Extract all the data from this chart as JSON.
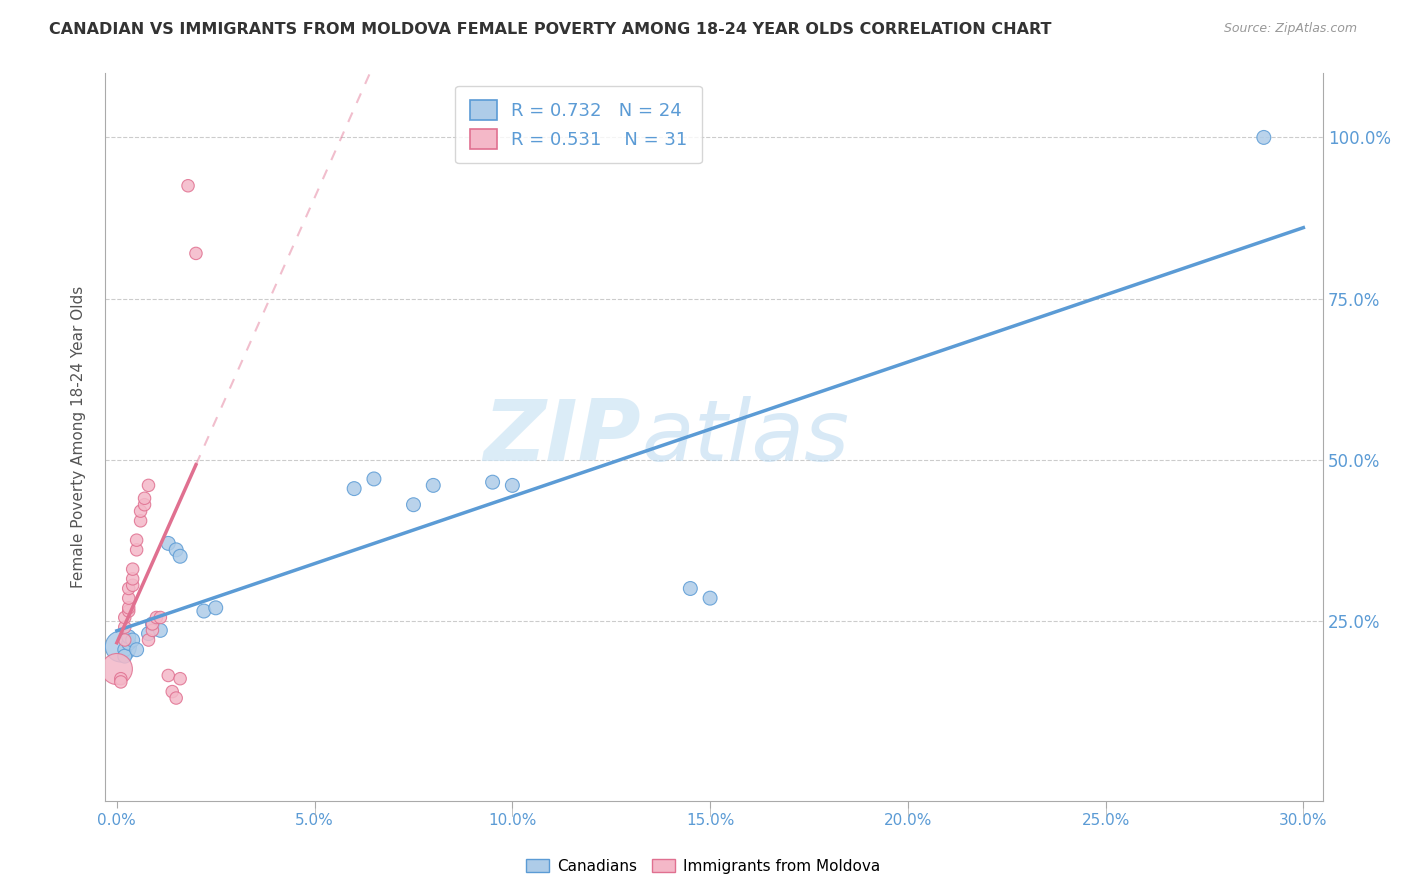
{
  "title": "CANADIAN VS IMMIGRANTS FROM MOLDOVA FEMALE POVERTY AMONG 18-24 YEAR OLDS CORRELATION CHART",
  "source": "Source: ZipAtlas.com",
  "ylabel": "Female Poverty Among 18-24 Year Olds",
  "watermark_zip": "ZIP",
  "watermark_atlas": "atlas",
  "legend_blue_r": "R = 0.732",
  "legend_blue_n": "N = 24",
  "legend_pink_r": "R = 0.531",
  "legend_pink_n": "N = 31",
  "blue_color": "#aecce8",
  "blue_line_color": "#5b9bd5",
  "pink_color": "#f4b8c8",
  "pink_line_color": "#e07090",
  "canadians_x": [
    0.001,
    0.002,
    0.002,
    0.003,
    0.003,
    0.004,
    0.005,
    0.008,
    0.009,
    0.011,
    0.013,
    0.015,
    0.016,
    0.022,
    0.025,
    0.06,
    0.065,
    0.075,
    0.08,
    0.095,
    0.1,
    0.145,
    0.15,
    0.29
  ],
  "canadians_y": [
    0.21,
    0.205,
    0.195,
    0.215,
    0.225,
    0.22,
    0.205,
    0.23,
    0.245,
    0.235,
    0.37,
    0.36,
    0.35,
    0.265,
    0.27,
    0.455,
    0.47,
    0.43,
    0.46,
    0.465,
    0.46,
    0.3,
    0.285,
    1.0
  ],
  "canadians_size": [
    500,
    100,
    100,
    100,
    100,
    100,
    100,
    100,
    100,
    100,
    100,
    100,
    100,
    100,
    100,
    100,
    100,
    100,
    100,
    100,
    100,
    100,
    100,
    100
  ],
  "moldovan_x": [
    0.0,
    0.001,
    0.001,
    0.002,
    0.002,
    0.002,
    0.003,
    0.003,
    0.003,
    0.003,
    0.004,
    0.004,
    0.004,
    0.005,
    0.005,
    0.006,
    0.006,
    0.007,
    0.007,
    0.008,
    0.008,
    0.009,
    0.009,
    0.01,
    0.011,
    0.013,
    0.014,
    0.015,
    0.016,
    0.018,
    0.02
  ],
  "moldovan_y": [
    0.175,
    0.16,
    0.155,
    0.22,
    0.24,
    0.255,
    0.265,
    0.27,
    0.285,
    0.3,
    0.305,
    0.315,
    0.33,
    0.36,
    0.375,
    0.405,
    0.42,
    0.43,
    0.44,
    0.46,
    0.22,
    0.235,
    0.245,
    0.255,
    0.255,
    0.165,
    0.14,
    0.13,
    0.16,
    0.925,
    0.82
  ],
  "moldovan_size": [
    500,
    80,
    80,
    80,
    80,
    80,
    80,
    80,
    80,
    80,
    80,
    80,
    80,
    80,
    80,
    80,
    80,
    80,
    80,
    80,
    80,
    80,
    80,
    80,
    80,
    80,
    80,
    80,
    80,
    80,
    80
  ],
  "xlim": [
    -0.003,
    0.305
  ],
  "ylim": [
    -0.03,
    1.1
  ],
  "xlabel_ticks": [
    0.0,
    0.05,
    0.1,
    0.15,
    0.2,
    0.25,
    0.3
  ],
  "ylabel_ticks": [
    0.25,
    0.5,
    0.75,
    1.0
  ],
  "grid_color": "#cccccc",
  "bg_color": "#ffffff"
}
